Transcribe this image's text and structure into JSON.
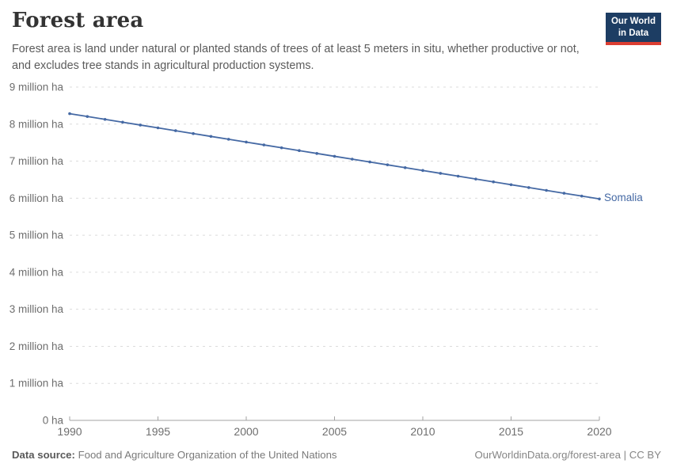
{
  "header": {
    "title": "Forest area",
    "subtitle": "Forest area is land under natural or planted stands of trees of at least 5 meters in situ, whether productive or not, and excludes tree stands in agricultural production systems."
  },
  "logo": {
    "line1": "Our World",
    "line2": "in Data",
    "bg_color": "#1d3d63",
    "accent_color": "#dc3e32"
  },
  "chart_data": {
    "type": "line",
    "title": "Forest area",
    "unit": "million ha",
    "xlabel": "",
    "ylabel": "",
    "xlim": [
      1990,
      2020
    ],
    "ylim": [
      0,
      9
    ],
    "grid": "dashed-horizontal",
    "legend_position": "end-of-line-label",
    "x": [
      1990,
      1991,
      1992,
      1993,
      1994,
      1995,
      1996,
      1997,
      1998,
      1999,
      2000,
      2001,
      2002,
      2003,
      2004,
      2005,
      2006,
      2007,
      2008,
      2009,
      2010,
      2011,
      2012,
      2013,
      2014,
      2015,
      2016,
      2017,
      2018,
      2019,
      2020
    ],
    "series": [
      {
        "name": "Somalia",
        "color": "#4569a4",
        "values": [
          8.282,
          8.206,
          8.129,
          8.052,
          7.975,
          7.899,
          7.822,
          7.745,
          7.668,
          7.592,
          7.515,
          7.438,
          7.361,
          7.285,
          7.208,
          7.131,
          7.054,
          6.978,
          6.901,
          6.824,
          6.748,
          6.671,
          6.594,
          6.517,
          6.441,
          6.364,
          6.287,
          6.21,
          6.133,
          6.057,
          5.98
        ]
      }
    ],
    "yticks": [
      {
        "value": 0,
        "label": "0 ha"
      },
      {
        "value": 1,
        "label": "1 million ha"
      },
      {
        "value": 2,
        "label": "2 million ha"
      },
      {
        "value": 3,
        "label": "3 million ha"
      },
      {
        "value": 4,
        "label": "4 million ha"
      },
      {
        "value": 5,
        "label": "5 million ha"
      },
      {
        "value": 6,
        "label": "6 million ha"
      },
      {
        "value": 7,
        "label": "7 million ha"
      },
      {
        "value": 8,
        "label": "8 million ha"
      },
      {
        "value": 9,
        "label": "9 million ha"
      }
    ],
    "xticks": [
      {
        "value": 1990,
        "label": "1990"
      },
      {
        "value": 1995,
        "label": "1995"
      },
      {
        "value": 2000,
        "label": "2000"
      },
      {
        "value": 2005,
        "label": "2005"
      },
      {
        "value": 2010,
        "label": "2010"
      },
      {
        "value": 2015,
        "label": "2015"
      },
      {
        "value": 2020,
        "label": "2020"
      }
    ],
    "colors": {
      "grid": "#dcdcdc",
      "axis": "#a3a3a3",
      "tick_text": "#6e6e6e"
    }
  },
  "footer": {
    "source_label": "Data source:",
    "source_text": "Food and Agriculture Organization of the United Nations",
    "right_text": "OurWorldinData.org/forest-area | CC BY"
  }
}
